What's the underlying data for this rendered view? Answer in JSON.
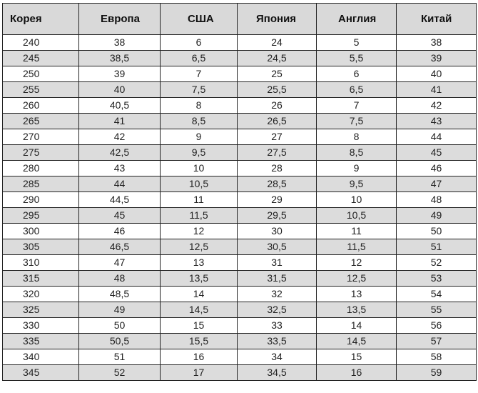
{
  "table": {
    "headers": [
      "Корея",
      "Европа",
      "США",
      "Япония",
      "Англия",
      "Китай"
    ],
    "rows": [
      [
        "240",
        "38",
        "6",
        "24",
        "5",
        "38"
      ],
      [
        "245",
        "38,5",
        "6,5",
        "24,5",
        "5,5",
        "39"
      ],
      [
        "250",
        "39",
        "7",
        "25",
        "6",
        "40"
      ],
      [
        "255",
        "40",
        "7,5",
        "25,5",
        "6,5",
        "41"
      ],
      [
        "260",
        "40,5",
        "8",
        "26",
        "7",
        "42"
      ],
      [
        "265",
        "41",
        "8,5",
        "26,5",
        "7,5",
        "43"
      ],
      [
        "270",
        "42",
        "9",
        "27",
        "8",
        "44"
      ],
      [
        "275",
        "42,5",
        "9,5",
        "27,5",
        "8,5",
        "45"
      ],
      [
        "280",
        "43",
        "10",
        "28",
        "9",
        "46"
      ],
      [
        "285",
        "44",
        "10,5",
        "28,5",
        "9,5",
        "47"
      ],
      [
        "290",
        "44,5",
        "11",
        "29",
        "10",
        "48"
      ],
      [
        "295",
        "45",
        "11,5",
        "29,5",
        "10,5",
        "49"
      ],
      [
        "300",
        "46",
        "12",
        "30",
        "11",
        "50"
      ],
      [
        "305",
        "46,5",
        "12,5",
        "30,5",
        "11,5",
        "51"
      ],
      [
        "310",
        "47",
        "13",
        "31",
        "12",
        "52"
      ],
      [
        "315",
        "48",
        "13,5",
        "31,5",
        "12,5",
        "53"
      ],
      [
        "320",
        "48,5",
        "14",
        "32",
        "13",
        "54"
      ],
      [
        "325",
        "49",
        "14,5",
        "32,5",
        "13,5",
        "55"
      ],
      [
        "330",
        "50",
        "15",
        "33",
        "14",
        "56"
      ],
      [
        "335",
        "50,5",
        "15,5",
        "33,5",
        "14,5",
        "57"
      ],
      [
        "340",
        "51",
        "16",
        "34",
        "15",
        "58"
      ],
      [
        "345",
        "52",
        "17",
        "34,5",
        "16",
        "59"
      ]
    ]
  },
  "colors": {
    "header_bg": "#d9d9d9",
    "shaded_row_bg": "#dcdcdc",
    "plain_row_bg": "#ffffff",
    "border": "#222222"
  }
}
